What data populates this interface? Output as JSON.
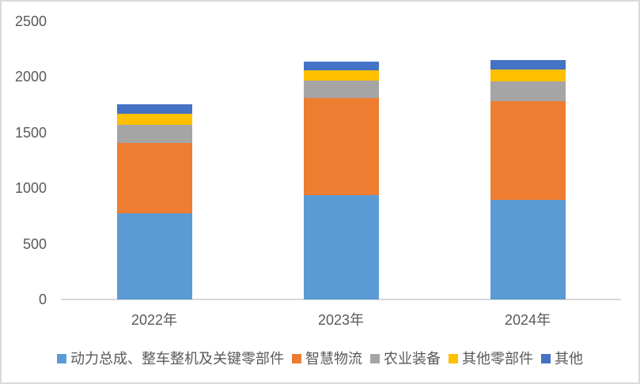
{
  "chart_data": {
    "type": "bar",
    "stacked": true,
    "title": "",
    "xlabel": "",
    "ylabel": "",
    "categories": [
      "2022年",
      "2023年",
      "2024年"
    ],
    "series": [
      {
        "name": "动力总成、整车整机及关键零部件",
        "color": "#5B9BD5",
        "values": [
          775,
          935,
          895
        ]
      },
      {
        "name": "智慧物流",
        "color": "#ED7D31",
        "values": [
          630,
          875,
          885
        ]
      },
      {
        "name": "农业装备",
        "color": "#A5A5A5",
        "values": [
          165,
          155,
          180
        ]
      },
      {
        "name": "其他零部件",
        "color": "#FFC000",
        "values": [
          100,
          95,
          105
        ]
      },
      {
        "name": "其他",
        "color": "#4472C4",
        "values": [
          85,
          80,
          85
        ]
      }
    ],
    "totals": [
      1755,
      2140,
      2150
    ],
    "ylim": [
      0,
      2500
    ],
    "yticks": [
      0,
      500,
      1000,
      1500,
      2000,
      2500
    ],
    "grid": false,
    "legend_position": "bottom"
  },
  "styles": {
    "text_color": "#595959",
    "axis_line_color": "#D9D9D9",
    "border_color": "#D9D9D9",
    "background": "#FFFFFF"
  }
}
